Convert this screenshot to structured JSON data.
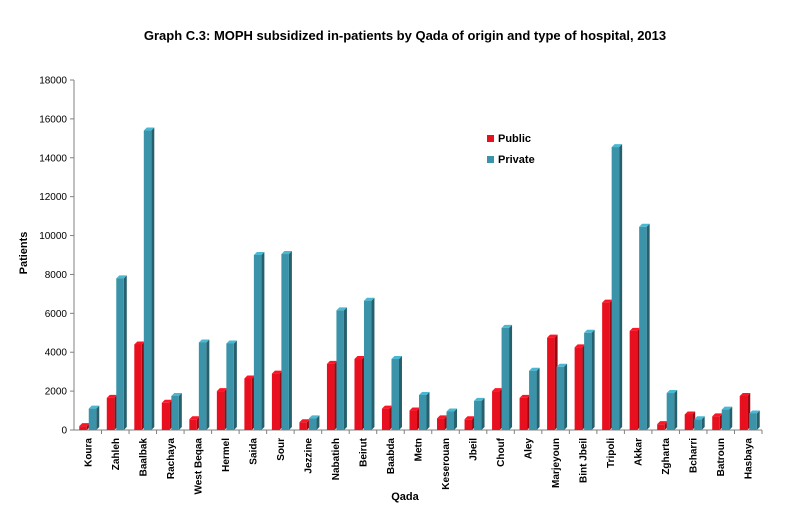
{
  "chart_data": {
    "type": "bar",
    "title": "Graph C.3: MOPH subsidized in-patients by Qada of origin and type of hospital, 2013",
    "xlabel": "Qada",
    "ylabel": "Patients",
    "ylim": [
      0,
      18000
    ],
    "yticks": [
      "0",
      "2000",
      "4000",
      "6000",
      "8000",
      "10000",
      "12000",
      "14000",
      "16000",
      "18000"
    ],
    "grid": false,
    "legend_position": "top-right",
    "categories": [
      "Koura",
      "Zahleh",
      "Baalbak",
      "Rachaya",
      "West Beqaa",
      "Hermel",
      "Saida",
      "Sour",
      "Jezzine",
      "Nabatieh",
      "Beirut",
      "Baabda",
      "Metn",
      "Keserouan",
      "Jbeil",
      "Chouf",
      "Aley",
      "Marjeyoun",
      "Bint Jbeil",
      "Tripoli",
      "Akkar",
      "Zgharta",
      "Bcharri",
      "Batroun",
      "Hasbaya"
    ],
    "series": [
      {
        "name": "Public",
        "color": "#e8101e",
        "values": [
          200,
          1650,
          4400,
          1400,
          550,
          2000,
          2650,
          2900,
          400,
          3400,
          3650,
          1100,
          1000,
          600,
          550,
          2000,
          1650,
          4750,
          4250,
          6550,
          5100,
          300,
          800,
          700,
          1750
        ]
      },
      {
        "name": "Private",
        "color": "#3a93a8",
        "values": [
          1100,
          7800,
          15400,
          1750,
          4500,
          4450,
          9000,
          9050,
          600,
          6150,
          6650,
          3650,
          1800,
          950,
          1500,
          5250,
          3050,
          3250,
          5000,
          14550,
          10450,
          1900,
          550,
          1050,
          850
        ]
      }
    ]
  }
}
